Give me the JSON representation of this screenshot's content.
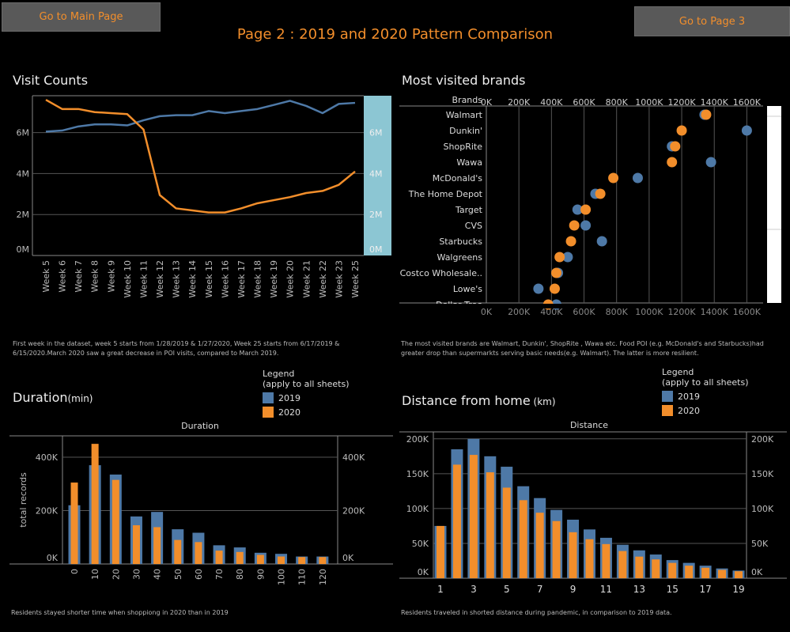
{
  "nav": {
    "main_label": "Go to Main Page",
    "page3_label": "Go to Page 3"
  },
  "page_title": "Page 2 :  2019 and 2020 Pattern Comparison",
  "colors": {
    "c2019": "#4e79a7",
    "c2020": "#f28e2b"
  },
  "visits": {
    "title": "Visit Counts",
    "note": "First week in the dataset, week 5  starts from 1/28/2019 & 1/27/2020, Week 25 starts from 6/17/2019 & 6/15/2020.March 2020 saw a great decrease in POI visits, compared to March 2019."
  },
  "brands": {
    "title": "Most visited brands",
    "note": "The most visited brands are Walmart, Dunkin', ShopRite , Wawa etc. Food POI (e.g. McDonald's and Starbucks)had greater drop than supermarkts serving basic needs(e.g. Walmart). The latter is more resilient.",
    "header": "Brands"
  },
  "duration": {
    "title": "Duration",
    "title_unit": "(min)",
    "note": "Residents stayed shorter time when shoppiong in 2020  than in 2019"
  },
  "distance": {
    "title": "Distance from home",
    "title_unit": " (km)",
    "note": "Residents traveled in shorted distance during pandemic, in comparison to 2019 data."
  },
  "legend": {
    "title": "Legend",
    "subtitle": "(apply to all sheets)",
    "items": [
      "2019",
      "2020"
    ]
  },
  "chart_data": [
    {
      "type": "line",
      "title": "Visit Counts",
      "x": [
        "Week 5",
        "Week 6",
        "Week 7",
        "Week 8",
        "Week 9",
        "Week 10",
        "Week 11",
        "Week 12",
        "Week 13",
        "Week 14",
        "Week 15",
        "Week 16",
        "Week 17",
        "Week 18",
        "Week 19",
        "Week 20",
        "Week 21",
        "Week 22",
        "Week 23",
        "Week 25"
      ],
      "series": [
        {
          "name": "2019",
          "values": [
            6.05,
            6.1,
            6.3,
            6.4,
            6.4,
            6.35,
            6.6,
            6.8,
            6.85,
            6.85,
            7.05,
            6.95,
            7.05,
            7.15,
            7.35,
            7.55,
            7.3,
            6.95,
            7.4,
            7.45
          ]
        },
        {
          "name": "2020",
          "values": [
            7.6,
            7.15,
            7.15,
            7.0,
            6.95,
            6.9,
            6.15,
            2.95,
            2.3,
            2.2,
            2.1,
            2.1,
            2.3,
            2.55,
            2.7,
            2.85,
            3.05,
            3.15,
            3.45,
            4.1
          ]
        }
      ],
      "ylim": [
        0,
        7.8
      ],
      "yticks": [
        "0M",
        "2M",
        "4M",
        "6M"
      ],
      "ytick_values": [
        0,
        2,
        4,
        6
      ]
    },
    {
      "type": "scatter",
      "title": "Most visited brands",
      "ylabel": "Brands",
      "categories": [
        "Walmart",
        "Dunkin'",
        "ShopRite",
        "Wawa",
        "McDonald's",
        "The Home Depot",
        "Target",
        "CVS",
        "Starbucks",
        "Walgreens",
        "Costco Wholesale..",
        "Lowe's",
        "Dollar Tree"
      ],
      "series": [
        {
          "name": "2019",
          "values": [
            1340,
            1600,
            1140,
            1380,
            930,
            670,
            560,
            610,
            710,
            500,
            440,
            320,
            430
          ]
        },
        {
          "name": "2020",
          "values": [
            1350,
            1200,
            1160,
            1140,
            780,
            700,
            610,
            540,
            520,
            450,
            430,
            420,
            380
          ]
        }
      ],
      "xticks": [
        "0K",
        "200K",
        "400K",
        "600K",
        "800K",
        "1000K",
        "1200K",
        "1400K",
        "1600K"
      ],
      "xtick_values": [
        0,
        200,
        400,
        600,
        800,
        1000,
        1200,
        1400,
        1600
      ],
      "xlim": [
        0,
        1700
      ]
    },
    {
      "type": "bar",
      "title": "Duration",
      "ylabel": "total records",
      "categories": [
        "0",
        "10",
        "20",
        "30",
        "40",
        "50",
        "60",
        "70",
        "80",
        "90",
        "100",
        "110",
        "120"
      ],
      "series": [
        {
          "name": "2019",
          "values": [
            220,
            370,
            335,
            178,
            195,
            130,
            117,
            70,
            62,
            42,
            38,
            28,
            28
          ]
        },
        {
          "name": "2020",
          "values": [
            305,
            450,
            315,
            145,
            138,
            90,
            82,
            50,
            45,
            34,
            28,
            26,
            26
          ]
        }
      ],
      "ylim": [
        0,
        480
      ],
      "yticks": [
        "0K",
        "200K",
        "400K"
      ],
      "ytick_values": [
        0,
        200,
        400
      ]
    },
    {
      "type": "bar",
      "title": "Distance",
      "categories": [
        "1",
        "2",
        "3",
        "4",
        "5",
        "6",
        "7",
        "8",
        "9",
        "10",
        "11",
        "12",
        "13",
        "14",
        "15",
        "16",
        "17",
        "18",
        "19"
      ],
      "xticks": [
        "1",
        "3",
        "5",
        "7",
        "9",
        "11",
        "13",
        "15",
        "17",
        "19"
      ],
      "series": [
        {
          "name": "2019",
          "values": [
            75,
            185,
            200,
            175,
            160,
            132,
            115,
            98,
            84,
            70,
            58,
            48,
            40,
            34,
            26,
            22,
            18,
            14,
            11
          ]
        },
        {
          "name": "2020",
          "values": [
            75,
            163,
            177,
            152,
            130,
            112,
            94,
            82,
            66,
            56,
            49,
            39,
            31,
            27,
            22,
            18,
            15,
            12,
            10
          ]
        }
      ],
      "ylim": [
        0,
        210
      ],
      "yticks": [
        "0K",
        "50K",
        "100K",
        "150K",
        "200K"
      ],
      "ytick_values": [
        0,
        50,
        100,
        150,
        200
      ]
    }
  ]
}
